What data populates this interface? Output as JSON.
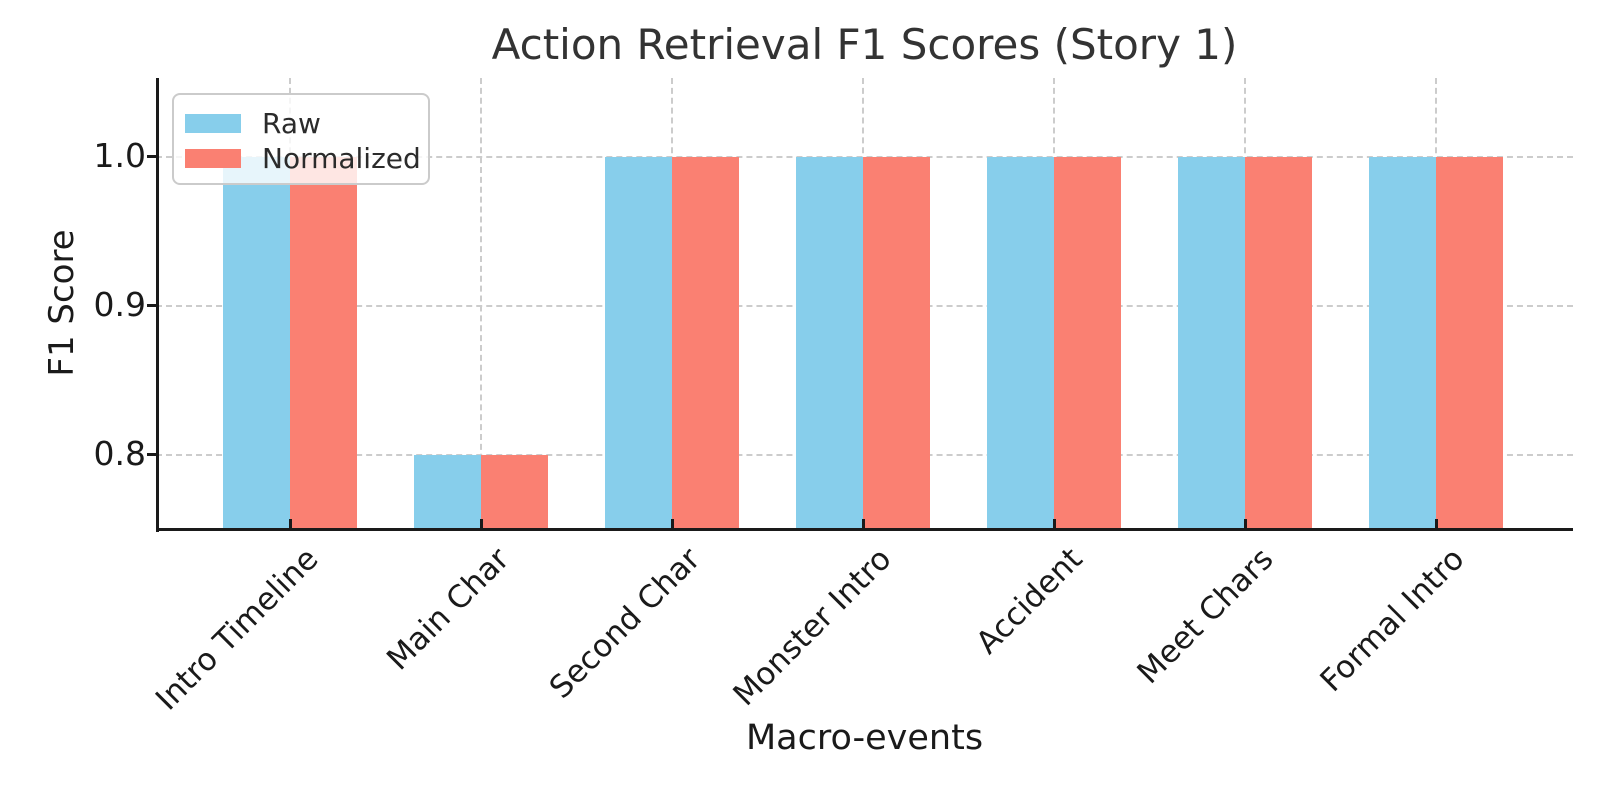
{
  "figure": {
    "title": "Action Retrieval F1 Scores (Story 1)",
    "xlabel": "Macro-events",
    "ylabel": "F1 Score"
  },
  "legend": {
    "items": [
      {
        "label": "Raw",
        "color": "#87CEEB"
      },
      {
        "label": "Normalized",
        "color": "#FA8072"
      }
    ]
  },
  "chart_data": {
    "type": "bar",
    "title": "Action Retrieval F1 Scores (Story 1)",
    "xlabel": "Macro-events",
    "ylabel": "F1 Score",
    "categories": [
      "Intro Timeline",
      "Main Char",
      "Second Char",
      "Monster Intro",
      "Accident",
      "Meet Chars",
      "Formal Intro"
    ],
    "series": [
      {
        "name": "Raw",
        "color": "#87CEEB",
        "values": [
          1.0,
          0.8,
          1.0,
          1.0,
          1.0,
          1.0,
          1.0
        ]
      },
      {
        "name": "Normalized",
        "color": "#FA8072",
        "values": [
          1.0,
          0.8,
          1.0,
          1.0,
          1.0,
          1.0,
          1.0
        ]
      }
    ],
    "ylim": [
      0.75,
      1.0527
    ],
    "yticks": [
      1.0,
      0.9,
      0.8
    ],
    "ytick_labels": [
      "1.0",
      "0.9",
      "0.8"
    ],
    "grid": true,
    "grid_style": "dashed",
    "legend_position": "upper left",
    "xtick_rotation": 45
  },
  "colors": {
    "raw": "#87CEEB",
    "normalized": "#FA8072",
    "grid": "#cccccc",
    "axis": "#1a1a1a",
    "text": "#262626",
    "background": "#ffffff",
    "legend_border": "#cbcbcb"
  }
}
